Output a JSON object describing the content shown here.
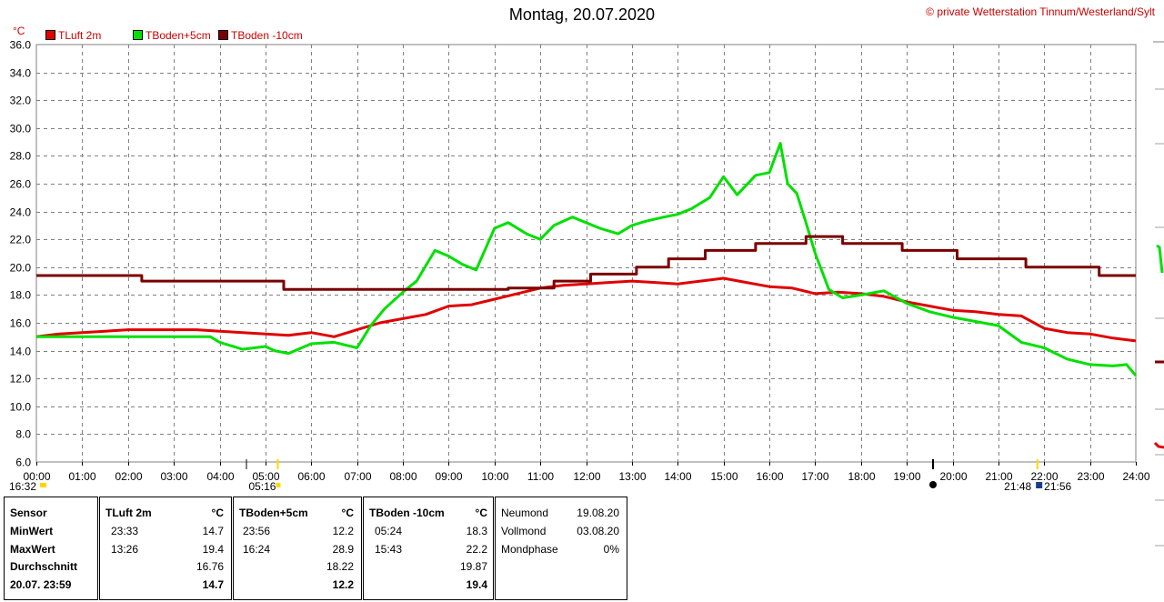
{
  "header": {
    "title": "Montag, 20.07.2020",
    "copyright": "© private Wetterstation Tinnum/Westerland/Sylt",
    "unit": "°C"
  },
  "legend": [
    {
      "label": "TLuft 2m",
      "color": "#e00000"
    },
    {
      "label": "TBoden+5cm",
      "color": "#00e000"
    },
    {
      "label": "TBoden -10cm",
      "color": "#7a0000"
    }
  ],
  "chart_data": {
    "type": "line",
    "title": "Montag, 20.07.2020",
    "ylabel": "°C",
    "xlim": [
      0,
      24
    ],
    "ylim": [
      6,
      36
    ],
    "grid": true,
    "legend_position": "top-left",
    "yticks": [
      "6.0",
      "8.0",
      "10.0",
      "12.0",
      "14.0",
      "16.0",
      "18.0",
      "20.0",
      "22.0",
      "24.0",
      "26.0",
      "28.0",
      "30.0",
      "32.0",
      "34.0",
      "36.0"
    ],
    "xticks": [
      "00:00",
      "01:00",
      "02:00",
      "03:00",
      "04:00",
      "05:00",
      "06:00",
      "07:00",
      "08:00",
      "09:00",
      "10:00",
      "11:00",
      "12:00",
      "13:00",
      "14:00",
      "15:00",
      "16:00",
      "17:00",
      "18:00",
      "19:00",
      "20:00",
      "21:00",
      "22:00",
      "23:00",
      "24:00"
    ],
    "annotations": [
      {
        "label": "16:32",
        "x": 0.0
      },
      {
        "label": "05:16",
        "x": 5.27
      },
      {
        "label": "21:48",
        "x": 21.8
      },
      {
        "label": "21:56",
        "x": 21.93
      }
    ],
    "series": [
      {
        "name": "TLuft 2m",
        "color": "#e00000",
        "x": [
          0,
          0.5,
          1,
          1.5,
          2,
          2.5,
          3,
          3.5,
          4,
          4.5,
          5,
          5.5,
          6,
          6.5,
          7,
          7.5,
          8,
          8.5,
          9,
          9.5,
          10,
          10.5,
          11,
          11.5,
          12,
          12.5,
          13,
          13.5,
          14,
          14.5,
          15,
          15.5,
          16,
          16.5,
          17,
          17.5,
          18,
          18.5,
          19,
          19.5,
          20,
          20.5,
          21,
          21.5,
          22,
          22.5,
          23,
          23.5,
          24
        ],
        "y": [
          15.0,
          15.2,
          15.3,
          15.4,
          15.5,
          15.5,
          15.5,
          15.5,
          15.4,
          15.3,
          15.2,
          15.1,
          15.3,
          15.0,
          15.5,
          16.0,
          16.3,
          16.6,
          17.2,
          17.3,
          17.7,
          18.1,
          18.5,
          18.7,
          18.8,
          18.9,
          19.0,
          18.9,
          18.8,
          19.0,
          19.2,
          18.9,
          18.6,
          18.5,
          18.1,
          18.2,
          18.1,
          17.9,
          17.5,
          17.2,
          16.9,
          16.8,
          16.6,
          16.5,
          15.6,
          15.3,
          15.2,
          14.9,
          14.7
        ]
      },
      {
        "name": "TBoden+5cm",
        "color": "#00e000",
        "x": [
          0,
          1,
          2,
          3,
          3.8,
          4,
          4.5,
          5,
          5.2,
          5.5,
          6,
          6.5,
          7,
          7.3,
          7.6,
          8,
          8.3,
          8.7,
          9,
          9.3,
          9.6,
          10,
          10.3,
          10.7,
          11,
          11.3,
          11.7,
          12,
          12.3,
          12.7,
          13,
          13.3,
          13.7,
          14,
          14.3,
          14.7,
          15,
          15.3,
          15.7,
          16,
          16.24,
          16.4,
          16.6,
          16.8,
          17,
          17.3,
          17.6,
          18,
          18.5,
          19,
          19.5,
          20,
          20.5,
          21,
          21.5,
          22,
          22.5,
          23,
          23.5,
          23.8,
          24
        ],
        "y": [
          15.0,
          15.0,
          15.0,
          15.0,
          15.0,
          14.6,
          14.1,
          14.3,
          14.0,
          13.8,
          14.5,
          14.6,
          14.2,
          15.8,
          17.0,
          18.2,
          19.0,
          21.2,
          20.8,
          20.2,
          19.8,
          22.8,
          23.2,
          22.4,
          22.0,
          23.0,
          23.6,
          23.2,
          22.8,
          22.4,
          23.0,
          23.3,
          23.6,
          23.8,
          24.2,
          25.0,
          26.5,
          25.2,
          26.6,
          26.8,
          28.9,
          26.0,
          25.3,
          23.2,
          21.0,
          18.4,
          17.8,
          18.0,
          18.3,
          17.4,
          16.8,
          16.4,
          16.1,
          15.8,
          14.6,
          14.2,
          13.4,
          13.0,
          12.9,
          13.0,
          12.2
        ]
      },
      {
        "name": "TBoden -10cm",
        "color": "#7a0000",
        "x": [
          0,
          2.3,
          5.4,
          10.3,
          11.3,
          12.1,
          13.1,
          13.8,
          14.6,
          15.7,
          16.8,
          17.6,
          18.9,
          20.1,
          21.6,
          23.2,
          24
        ],
        "y": [
          19.4,
          19.0,
          18.4,
          18.5,
          19.0,
          19.5,
          20.0,
          20.6,
          21.2,
          21.7,
          22.2,
          21.7,
          21.2,
          20.6,
          20.0,
          19.4,
          19.4
        ]
      }
    ]
  },
  "table": {
    "labels": {
      "sensor": "Sensor",
      "min": "MinWert",
      "max": "MaxWert",
      "avg": "Durchschnitt",
      "current": "20.07. 23:59"
    },
    "columns": [
      {
        "name": "TLuft 2m",
        "unit": "°C",
        "min_time": "23:33",
        "min_value": "14.7",
        "max_time": "13:26",
        "max_value": "19.4",
        "avg": "16.76",
        "current": "14.7"
      },
      {
        "name": "TBoden+5cm",
        "unit": "°C",
        "min_time": "23:56",
        "min_value": "12.2",
        "max_time": "16:24",
        "max_value": "28.9",
        "avg": "18.22",
        "current": "12.2"
      },
      {
        "name": "TBoden -10cm",
        "unit": "°C",
        "min_time": "05:24",
        "min_value": "18.3",
        "max_time": "15:43",
        "max_value": "22.2",
        "avg": "19.87",
        "current": "19.4"
      }
    ],
    "moon": {
      "new_label": "Neumond",
      "new_date": "19.08.20",
      "full_label": "Vollmond",
      "full_date": "03.08.20",
      "phase_label": "Mondphase",
      "phase_value": "0%"
    }
  }
}
